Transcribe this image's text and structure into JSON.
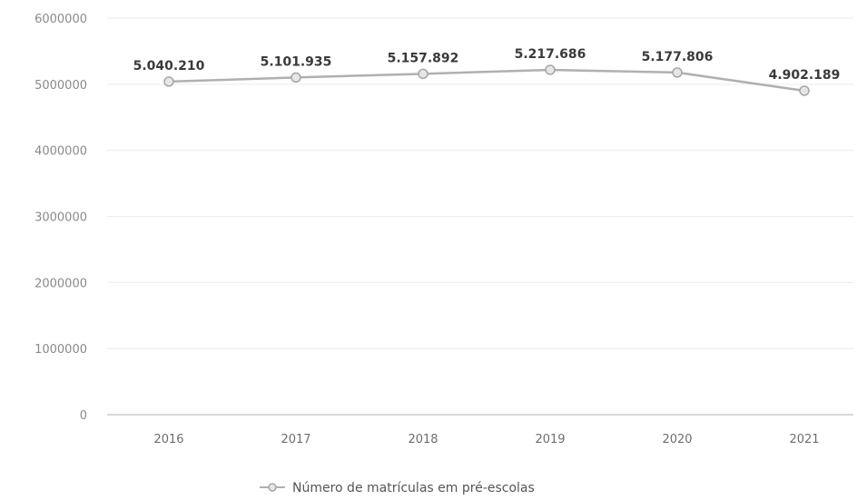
{
  "chart_data": {
    "type": "line",
    "categories": [
      "2016",
      "2017",
      "2018",
      "2019",
      "2020",
      "2021"
    ],
    "series": [
      {
        "name": "Número de matrículas em pré-escolas",
        "values": [
          5040210,
          5101935,
          5157892,
          5217686,
          5177806,
          4902189
        ],
        "data_labels": [
          "5.040.210",
          "5.101.935",
          "5.157.892",
          "5.217.686",
          "5.177.806",
          "4.902.189"
        ]
      }
    ],
    "y_ticks": [
      "0",
      "1000000",
      "2000000",
      "3000000",
      "4000000",
      "5000000",
      "6000000"
    ],
    "ylim": [
      0,
      6000000
    ],
    "grid": true,
    "legend_position": "bottom",
    "colors": {
      "line": "#b0b0b0",
      "marker_fill": "#e6e6e6",
      "marker_stroke": "#a6a6a6",
      "grid": "#ebebeb",
      "axis": "#d9d9d9"
    }
  }
}
